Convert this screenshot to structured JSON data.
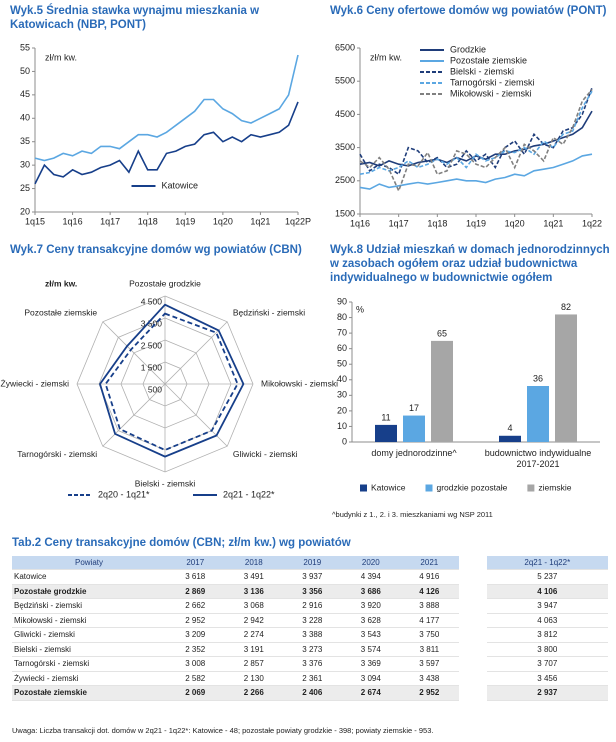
{
  "chart_data": [
    {
      "type": "line",
      "title": "Wyk.5 Średnia stawka wynajmu mieszkania w Katowicach (NBP, PONT)",
      "y_label": "zł/m kw.",
      "categories": [
        "1q15",
        null,
        null,
        null,
        "1q16",
        null,
        null,
        null,
        "1q17",
        null,
        null,
        null,
        "1q18",
        null,
        null,
        null,
        "1q19",
        null,
        null,
        null,
        "1q20",
        null,
        null,
        null,
        "1q21",
        null,
        null,
        null,
        "1q22P"
      ],
      "series": [
        {
          "name": "Katowice",
          "color": "#173f8a",
          "values": [
            26,
            30,
            28,
            27.5,
            29,
            28,
            28.5,
            29.5,
            30,
            31,
            28.5,
            33,
            29,
            29,
            32.5,
            33,
            34,
            34.5,
            36.5,
            37,
            35,
            36,
            35,
            36.5,
            36,
            36.5,
            37,
            38.5,
            43.5
          ]
        },
        {
          "color": "#5ba7e2",
          "values": [
            31.5,
            31,
            31.5,
            32.5,
            32,
            33,
            32.5,
            34,
            34,
            33.5,
            35,
            36.5,
            36.5,
            36,
            37,
            38.5,
            40,
            41.5,
            44,
            44,
            42,
            41,
            39.5,
            39,
            40,
            41,
            42,
            45,
            53.5
          ]
        }
      ],
      "ylim": [
        20,
        55
      ],
      "yticks": [
        20,
        25,
        30,
        35,
        40,
        45,
        50,
        55
      ],
      "legend": "bottom-center"
    },
    {
      "type": "line",
      "title": "Wyk.6 Ceny ofertowe domów wg powiatów (PONT)",
      "y_label": "zł/m kw.",
      "categories": [
        "1q16",
        null,
        null,
        null,
        "1q17",
        null,
        null,
        null,
        "1q18",
        null,
        null,
        null,
        "1q19",
        null,
        null,
        null,
        "1q20",
        null,
        null,
        null,
        "1q21",
        null,
        null,
        null,
        "1q22"
      ],
      "series": [
        {
          "name": "Grodzkie",
          "color": "#1f3d7a",
          "style": "solid",
          "values": [
            3000,
            3050,
            2950,
            3100,
            3000,
            2950,
            3050,
            3100,
            3150,
            3050,
            3200,
            3100,
            3250,
            3150,
            3300,
            3300,
            3400,
            3450,
            3550,
            3600,
            3700,
            3800,
            3900,
            4100,
            4600
          ]
        },
        {
          "name": "Pozostałe ziemskie",
          "color": "#5ba7e2",
          "style": "solid",
          "values": [
            2300,
            2250,
            2400,
            2300,
            2350,
            2400,
            2450,
            2400,
            2450,
            2500,
            2550,
            2500,
            2500,
            2450,
            2550,
            2600,
            2700,
            2650,
            2800,
            2850,
            2900,
            3000,
            3100,
            3250,
            3300
          ]
        },
        {
          "name": "Bielski - ziemski",
          "color": "#1f3d7a",
          "style": "dashed",
          "values": [
            3300,
            2800,
            3000,
            2900,
            2700,
            3500,
            3400,
            3050,
            3200,
            2900,
            3000,
            3400,
            3100,
            3300,
            2900,
            3500,
            3700,
            3300,
            3900,
            3600,
            3500,
            4000,
            4100,
            4500,
            5300
          ]
        },
        {
          "name": "Tarnogórski - ziemski",
          "color": "#5ba7e2",
          "style": "dashed",
          "values": [
            2700,
            2750,
            2900,
            2800,
            2900,
            3100,
            2900,
            3000,
            3150,
            3000,
            3200,
            2900,
            3300,
            3100,
            3200,
            3400,
            3350,
            3500,
            3300,
            3700,
            3500,
            3900,
            4000,
            4700,
            5200
          ]
        },
        {
          "name": "Mikołowski - ziemski",
          "color": "#808080",
          "style": "dashed",
          "values": [
            3100,
            2900,
            3200,
            2850,
            2200,
            3000,
            2950,
            3350,
            2700,
            2800,
            3400,
            3300,
            3000,
            2900,
            3200,
            3500,
            2900,
            3600,
            3400,
            3100,
            3800,
            3600,
            4100,
            4900,
            5250
          ]
        }
      ],
      "ylim": [
        1500,
        6500
      ],
      "yticks": [
        1500,
        2500,
        3500,
        4500,
        5500,
        6500
      ],
      "legend": "top-left"
    },
    {
      "type": "radar",
      "title": "Wyk.7 Ceny transakcyjne domów wg powiatów (CBN)",
      "y_label": "zł/m kw.",
      "categories": [
        "Pozostałe grodzkie",
        "Będziński - ziemski",
        "Mikołowski - ziemski",
        "Gliwicki - ziemski",
        "Bielski - ziemski",
        "Tarnogórski - ziemski",
        "Żywiecki - ziemski",
        "Pozostałe ziemskie"
      ],
      "series": [
        {
          "name": "2q20 - 1q21*",
          "color": "#173f8a",
          "style": "dashed",
          "values": [
            3700,
            3800,
            3800,
            3500,
            3500,
            3400,
            3200,
            2700
          ]
        },
        {
          "name": "2q21 - 1q22*",
          "color": "#173f8a",
          "style": "solid",
          "values": [
            4106,
            3947,
            4063,
            3812,
            3800,
            3707,
            3456,
            2937
          ]
        }
      ],
      "rlim": [
        500,
        4500
      ],
      "rticks": [
        500,
        {
          "value": 1500,
          "label": "1 500"
        },
        {
          "value": 2500,
          "label": "2 500"
        },
        {
          "value": 3500,
          "label": "3 500"
        },
        {
          "value": 4500,
          "label": "4 500"
        }
      ],
      "legend": "bottom"
    },
    {
      "type": "bar",
      "title": "Wyk.8 Udział mieszkań w domach jednorodzinnych w zasobach ogółem oraz udział budownictwa indywidualnego w budownictwie ogółem",
      "y_label": "%",
      "categories": [
        "domy jednorodzinne^",
        "budownictwo indywidualne 2017-2021"
      ],
      "series": [
        {
          "name": "Katowice",
          "color": "#173f8a",
          "values": [
            11,
            4
          ]
        },
        {
          "name": "grodzkie pozostałe",
          "color": "#5ba7e2",
          "values": [
            17,
            36
          ]
        },
        {
          "name": "ziemskie",
          "color": "#a6a6a6",
          "values": [
            65,
            82
          ]
        }
      ],
      "ylim": [
        0,
        90
      ],
      "yticks": [
        0,
        10,
        20,
        30,
        40,
        50,
        60,
        70,
        80,
        90
      ],
      "legend": "bottom",
      "footnote": "^budynki z 1., 2. i 3. mieszkaniami wg NSP 2011"
    }
  ],
  "table": {
    "title": "Tab.2 Ceny transakcyjne domów (CBN; zł/m kw.) wg powiatów",
    "header": [
      "Powiaty",
      "2017",
      "2018",
      "2019",
      "2020",
      "2021",
      "2q21 - 1q22*"
    ],
    "rows": [
      [
        "Katowice",
        "3 618",
        "3 491",
        "3 937",
        "4 394",
        "4 916",
        "5 237"
      ],
      [
        "Pozostałe grodzkie",
        "2 869",
        "3 136",
        "3 356",
        "3 686",
        "4 126",
        "4 106"
      ],
      [
        "Będziński - ziemski",
        "2 662",
        "3 068",
        "2 916",
        "3 920",
        "3 888",
        "3 947"
      ],
      [
        "Mikołowski - ziemski",
        "2 952",
        "2 942",
        "3 228",
        "3 628",
        "4 177",
        "4 063"
      ],
      [
        "Gliwicki - ziemski",
        "3 209",
        "2 274",
        "3 388",
        "3 543",
        "3 750",
        "3 812"
      ],
      [
        "Bielski - ziemski",
        "2 352",
        "3 191",
        "3 273",
        "3 574",
        "3 811",
        "3 800"
      ],
      [
        "Tarnogórski - ziemski",
        "3 008",
        "2 857",
        "3 376",
        "3 369",
        "3 597",
        "3 707"
      ],
      [
        "Żywiecki - ziemski",
        "2 582",
        "2 130",
        "2 361",
        "3 094",
        "3 438",
        "3 456"
      ],
      [
        "Pozostałe ziemskie",
        "2 069",
        "2 266",
        "2 406",
        "2 674",
        "2 952",
        "2 937"
      ]
    ]
  },
  "note": "Uwaga: Liczba transakcji dot. domów w 2q21 - 1q22*: Katowice - 48; pozostałe powiaty grodzkie - 398; powiaty ziemskie - 953."
}
